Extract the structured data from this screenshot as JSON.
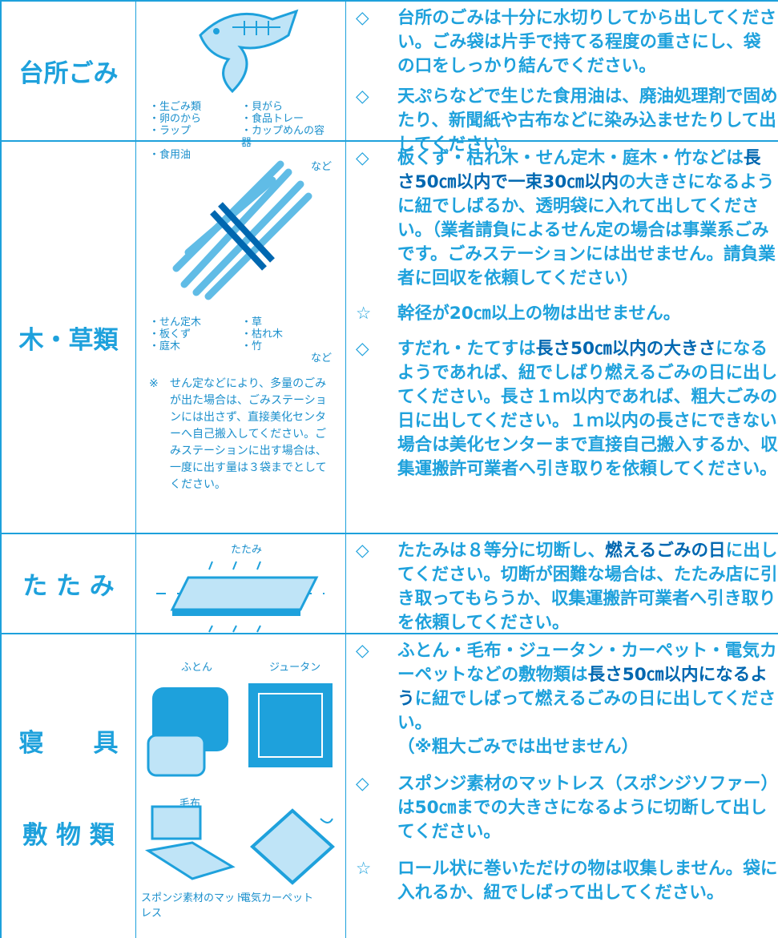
{
  "rows": [
    {
      "category": [
        "台所ごみ"
      ],
      "items": [
        "・生ごみ類",
        "・貝がら",
        "・卵のから",
        "・食品トレー",
        "・ラップ",
        "・カップめんの容器",
        "・食用油"
      ],
      "etc": "など",
      "paragraphs": [
        {
          "mark": "◇",
          "parts": [
            "台所のごみは十分に水切りしてから出してください。ごみ袋は片手で持てる程度の重さにし、袋の口をしっかり結んでください。"
          ]
        },
        {
          "mark": "◇",
          "parts": [
            "天ぷらなどで生じた食用油は、廃油処理剤で固めたり、新聞紙や古布などに染み込ませたりして出してください。"
          ]
        }
      ]
    },
    {
      "category": [
        "木・草類"
      ],
      "items": [
        "・せん定木",
        "・草",
        "・板くず",
        "・枯れ木",
        "・庭木",
        "・竹"
      ],
      "etc": "など",
      "note": {
        "mark": "※",
        "text": "せん定などにより、多量のごみが出た場合は、ごみステーションには出さず、直接美化センターへ自己搬入してください。ごみステーションに出す場合は、一度に出す量は３袋までとしてください。"
      },
      "paragraphs": [
        {
          "mark": "◇",
          "parts": [
            "板くず・枯れ木・せん定木・庭木・竹などは",
            "長さ50㎝以内で一束30㎝以内",
            "の大きさになるように紐でしばるか、透明袋に入れて出してください。（業者請負によるせん定の場合は事業系ごみです。ごみステーションには出せません。請負業者に回収を依頼してください）"
          ]
        },
        {
          "mark": "☆",
          "parts": [
            "幹径が20㎝以上の物は出せません。"
          ]
        },
        {
          "mark": "◇",
          "parts": [
            "すだれ・たてすは",
            "長さ50㎝以内の大きさ",
            "になるようであれば、紐でしばり燃えるごみの日に出してください。長さ１ｍ以内であれば、粗大ごみの日に出してください。１ｍ以内の長さにできない場合は美化センターまで直接自己搬入するか、収集運搬許可業者へ引き取りを依頼してください。"
          ]
        }
      ]
    },
    {
      "category": [
        "た た み"
      ],
      "labels": [
        "たたみ"
      ],
      "paragraphs": [
        {
          "mark": "◇",
          "parts": [
            "たたみは８等分に切断し、",
            "燃えるごみの日",
            "に出してください。切断が困難な場合は、たたみ店に引き取ってもらうか、収集運搬許可業者へ引き取りを依頼してください。"
          ]
        }
      ]
    },
    {
      "category": [
        "寝　　具",
        "敷 物 類"
      ],
      "labels": [
        "ふとん",
        "ジュータン",
        "毛布",
        "スポンジ素材のマットレス",
        "電気カーペット"
      ],
      "paragraphs": [
        {
          "mark": "◇",
          "parts": [
            "ふとん・毛布・ジュータン・カーペット・電気カーペットなどの敷物類は",
            "長さ50㎝以内になるよう",
            "に紐でしばって燃えるごみの日に出してください。\n（※粗大ごみでは出せません）"
          ]
        },
        {
          "mark": "◇",
          "parts": [
            "スポンジ素材のマットレス（スポンジソファー）は50㎝までの大きさになるように切断して出してください。"
          ]
        },
        {
          "mark": "☆",
          "parts": [
            "ロール状に巻いただけの物は収集しません。袋に入れるか、紐でしばって出してください。"
          ]
        }
      ]
    }
  ]
}
